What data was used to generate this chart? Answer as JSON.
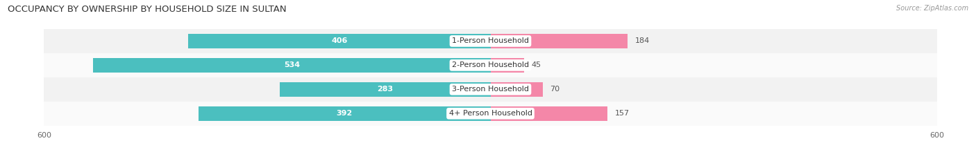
{
  "title": "OCCUPANCY BY OWNERSHIP BY HOUSEHOLD SIZE IN SULTAN",
  "source": "Source: ZipAtlas.com",
  "categories": [
    "1-Person Household",
    "2-Person Household",
    "3-Person Household",
    "4+ Person Household"
  ],
  "owner_values": [
    406,
    534,
    283,
    392
  ],
  "renter_values": [
    184,
    45,
    70,
    157
  ],
  "axis_max": 600,
  "owner_color": "#4BBFBF",
  "renter_color": "#F487A8",
  "row_bg_colors": [
    "#F2F2F2",
    "#FAFAFA",
    "#F2F2F2",
    "#FAFAFA"
  ],
  "title_fontsize": 9.5,
  "source_fontsize": 7,
  "tick_fontsize": 8,
  "bar_label_fontsize": 8,
  "category_fontsize": 8,
  "legend_fontsize": 8,
  "bar_height": 0.6,
  "owner_label_threshold": 80,
  "renter_label_inside_threshold": 300
}
